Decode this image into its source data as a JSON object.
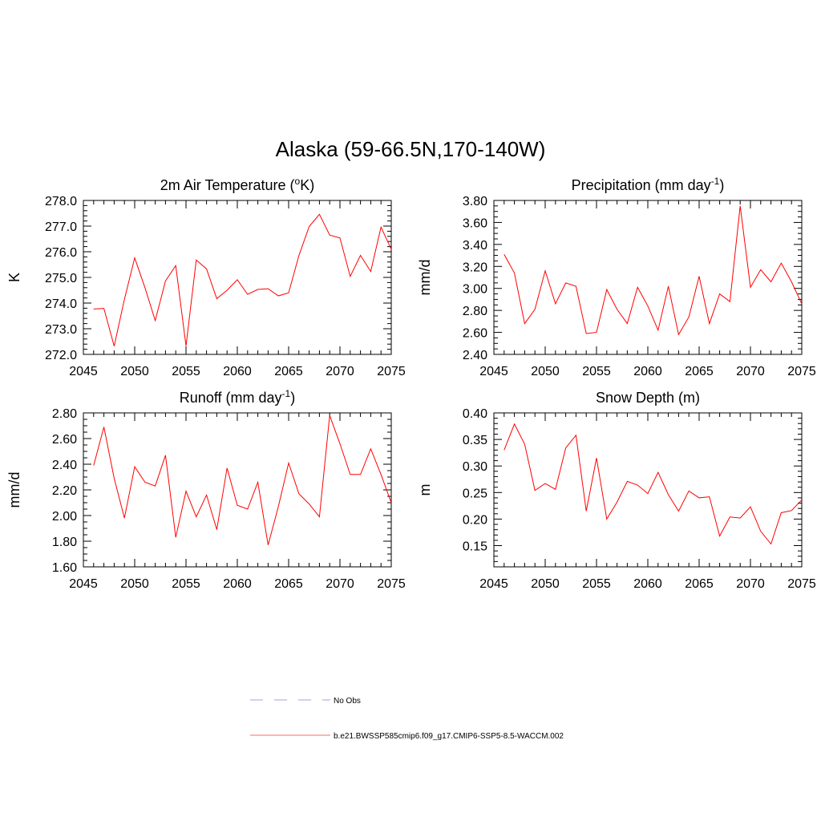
{
  "figure": {
    "title": "Alaska (59-66.5N,170-140W)"
  },
  "chart_data": [
    {
      "type": "line",
      "title": "2m Air Temperature (",
      "title_sup": "o",
      "title_tail": "K)",
      "ylabel": "K",
      "xlim": [
        2045,
        2075
      ],
      "ylim": [
        272.0,
        278.0
      ],
      "xticks": [
        2045,
        2050,
        2055,
        2060,
        2065,
        2070,
        2075
      ],
      "xtick_labels": [
        "2045",
        "2050",
        "2055",
        "2060",
        "2065",
        "2070",
        "2075"
      ],
      "yticks": [
        272.0,
        273.0,
        274.0,
        275.0,
        276.0,
        277.0,
        278.0
      ],
      "ytick_labels": [
        "272.0",
        "273.0",
        "274.0",
        "275.0",
        "276.0",
        "277.0",
        "278.0"
      ],
      "yminor": 0.2,
      "x": [
        2046,
        2047,
        2048,
        2049,
        2050,
        2051,
        2052,
        2053,
        2054,
        2055,
        2056,
        2057,
        2058,
        2059,
        2060,
        2061,
        2062,
        2063,
        2064,
        2065,
        2066,
        2067,
        2068,
        2069,
        2070,
        2071,
        2072,
        2073,
        2074,
        2075
      ],
      "series": [
        {
          "values": [
            273.77,
            273.79,
            272.32,
            274.15,
            275.76,
            274.6,
            273.32,
            274.86,
            275.46,
            272.33,
            275.68,
            275.33,
            274.17,
            274.5,
            274.91,
            274.34,
            274.53,
            274.56,
            274.28,
            274.4,
            275.85,
            276.98,
            277.46,
            276.65,
            276.54,
            275.04,
            275.86,
            275.23,
            276.96,
            276.1
          ],
          "color": "#ff0000"
        }
      ]
    },
    {
      "type": "line",
      "title": "Precipitation (mm day",
      "title_sup": "-1",
      "title_tail": ")",
      "ylabel": "mm/d",
      "xlim": [
        2045,
        2075
      ],
      "ylim": [
        2.4,
        3.8
      ],
      "xticks": [
        2045,
        2050,
        2055,
        2060,
        2065,
        2070,
        2075
      ],
      "xtick_labels": [
        "2045",
        "2050",
        "2055",
        "2060",
        "2065",
        "2070",
        "2075"
      ],
      "yticks": [
        2.4,
        2.6,
        2.8,
        3.0,
        3.2,
        3.4,
        3.6,
        3.8
      ],
      "ytick_labels": [
        "2.40",
        "2.60",
        "2.80",
        "3.00",
        "3.20",
        "3.40",
        "3.60",
        "3.80"
      ],
      "yminor": 0.05,
      "x": [
        2046,
        2047,
        2048,
        2049,
        2050,
        2051,
        2052,
        2053,
        2054,
        2055,
        2056,
        2057,
        2058,
        2059,
        2060,
        2061,
        2062,
        2063,
        2064,
        2065,
        2066,
        2067,
        2068,
        2069,
        2070,
        2071,
        2072,
        2073,
        2074,
        2075
      ],
      "series": [
        {
          "values": [
            3.31,
            3.14,
            2.68,
            2.81,
            3.16,
            2.86,
            3.05,
            3.02,
            2.59,
            2.6,
            2.99,
            2.81,
            2.68,
            3.01,
            2.84,
            2.62,
            3.02,
            2.58,
            2.74,
            3.11,
            2.68,
            2.95,
            2.88,
            3.75,
            3.01,
            3.17,
            3.06,
            3.23,
            3.06,
            2.86
          ],
          "color": "#ff0000"
        }
      ]
    },
    {
      "type": "line",
      "title": "Runoff (mm day",
      "title_sup": "-1",
      "title_tail": ")",
      "ylabel": "mm/d",
      "xlim": [
        2045,
        2075
      ],
      "ylim": [
        1.6,
        2.8
      ],
      "xticks": [
        2045,
        2050,
        2055,
        2060,
        2065,
        2070,
        2075
      ],
      "xtick_labels": [
        "2045",
        "2050",
        "2055",
        "2060",
        "2065",
        "2070",
        "2075"
      ],
      "yticks": [
        1.6,
        1.8,
        2.0,
        2.2,
        2.4,
        2.6,
        2.8
      ],
      "ytick_labels": [
        "1.60",
        "1.80",
        "2.00",
        "2.20",
        "2.40",
        "2.60",
        "2.80"
      ],
      "yminor": 0.05,
      "x": [
        2046,
        2047,
        2048,
        2049,
        2050,
        2051,
        2052,
        2053,
        2054,
        2055,
        2056,
        2057,
        2058,
        2059,
        2060,
        2061,
        2062,
        2063,
        2064,
        2065,
        2066,
        2067,
        2068,
        2069,
        2070,
        2071,
        2072,
        2073,
        2074,
        2075
      ],
      "series": [
        {
          "values": [
            2.39,
            2.69,
            2.29,
            1.98,
            2.38,
            2.26,
            2.23,
            2.47,
            1.83,
            2.19,
            1.99,
            2.16,
            1.89,
            2.37,
            2.08,
            2.05,
            2.26,
            1.77,
            2.07,
            2.41,
            2.17,
            2.09,
            1.99,
            2.78,
            2.56,
            2.32,
            2.32,
            2.52,
            2.32,
            2.1
          ],
          "color": "#ff0000"
        }
      ]
    },
    {
      "type": "line",
      "title": "Snow Depth (m)",
      "title_sup": "",
      "title_tail": "",
      "ylabel": "m",
      "xlim": [
        2045,
        2075
      ],
      "ylim": [
        0.11,
        0.4
      ],
      "xticks": [
        2045,
        2050,
        2055,
        2060,
        2065,
        2070,
        2075
      ],
      "xtick_labels": [
        "2045",
        "2050",
        "2055",
        "2060",
        "2065",
        "2070",
        "2075"
      ],
      "yticks": [
        0.15,
        0.2,
        0.25,
        0.3,
        0.35,
        0.4
      ],
      "ytick_labels": [
        "0.15",
        "0.20",
        "0.25",
        "0.30",
        "0.35",
        "0.40"
      ],
      "yminor": 0.01,
      "x": [
        2046,
        2047,
        2048,
        2049,
        2050,
        2051,
        2052,
        2053,
        2054,
        2055,
        2056,
        2057,
        2058,
        2059,
        2060,
        2061,
        2062,
        2063,
        2064,
        2065,
        2066,
        2067,
        2068,
        2069,
        2070,
        2071,
        2072,
        2073,
        2074,
        2075
      ],
      "series": [
        {
          "values": [
            0.33,
            0.379,
            0.341,
            0.254,
            0.267,
            0.256,
            0.334,
            0.358,
            0.215,
            0.315,
            0.2,
            0.232,
            0.271,
            0.264,
            0.248,
            0.288,
            0.246,
            0.215,
            0.253,
            0.24,
            0.242,
            0.168,
            0.204,
            0.202,
            0.223,
            0.177,
            0.153,
            0.212,
            0.216,
            0.236
          ],
          "color": "#ff0000"
        }
      ]
    }
  ],
  "legend": {
    "items": [
      {
        "label": "No Obs",
        "color": "#a0a0e6",
        "style": "dashed"
      },
      {
        "label": "b.e21.BWSSP585cmip6.f09_g17.CMIP6-SSP5-8.5-WACCM.002",
        "color": "#ff6a6a",
        "style": "solid"
      }
    ]
  }
}
